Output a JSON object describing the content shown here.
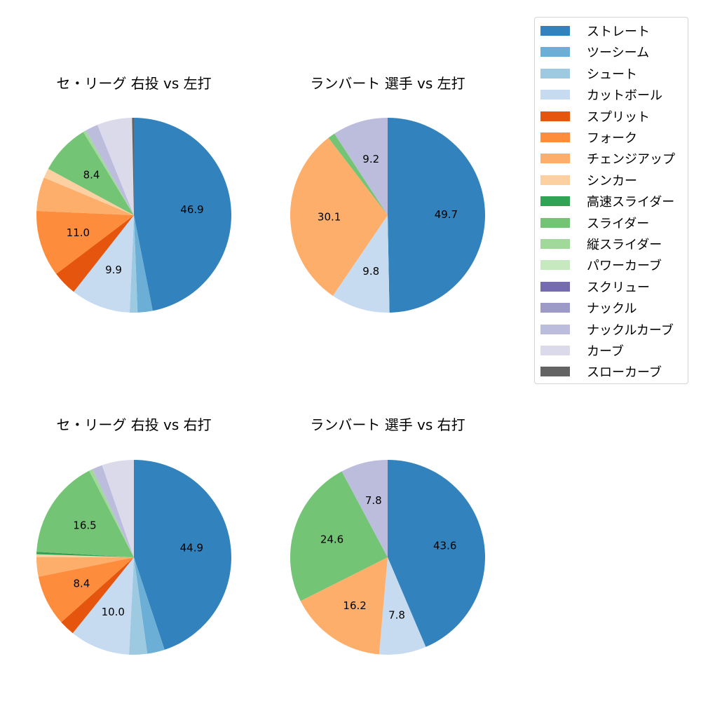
{
  "chart_data": [
    {
      "type": "pie",
      "title": "セ・リーグ 右投 vs 左打",
      "categories": [
        "ストレート",
        "ツーシーム",
        "シュート",
        "カットボール",
        "スプリット",
        "フォーク",
        "チェンジアップ",
        "シンカー",
        "スライダー",
        "縦スライダー",
        "ナックルカーブ",
        "カーブ",
        "スローカーブ"
      ],
      "values": [
        46.9,
        2.5,
        1.3,
        9.9,
        4.1,
        11.0,
        5.6,
        1.6,
        8.4,
        0.5,
        2.1,
        5.8,
        0.3
      ],
      "labels_shown": [
        "46.9",
        "",
        "",
        "9.9",
        "",
        "11.0",
        "",
        "",
        "8.4",
        "",
        "",
        "",
        ""
      ],
      "start_angle": 90,
      "direction": "clockwise"
    },
    {
      "type": "pie",
      "title": "ランバート 選手 vs 左打",
      "categories": [
        "ストレート",
        "カットボール",
        "チェンジアップ",
        "スライダー",
        "ナックルカーブ"
      ],
      "values": [
        49.7,
        9.8,
        30.1,
        1.2,
        9.2
      ],
      "labels_shown": [
        "49.7",
        "9.8",
        "30.1",
        "",
        "9.2"
      ],
      "start_angle": 90,
      "direction": "clockwise"
    },
    {
      "type": "pie",
      "title": "セ・リーグ 右投 vs 右打",
      "categories": [
        "ストレート",
        "ツーシーム",
        "シュート",
        "カットボール",
        "スプリット",
        "フォーク",
        "チェンジアップ",
        "シンカー",
        "高速スライダー",
        "スライダー",
        "縦スライダー",
        "ナックルカーブ",
        "カーブ"
      ],
      "values": [
        44.9,
        2.9,
        3.0,
        10.0,
        2.6,
        8.4,
        3.2,
        0.5,
        0.4,
        16.5,
        0.6,
        1.7,
        5.3
      ],
      "labels_shown": [
        "44.9",
        "",
        "",
        "10.0",
        "",
        "8.4",
        "",
        "",
        "",
        "16.5",
        "",
        "",
        ""
      ],
      "start_angle": 90,
      "direction": "clockwise"
    },
    {
      "type": "pie",
      "title": "ランバート 選手 vs 右打",
      "categories": [
        "ストレート",
        "カットボール",
        "チェンジアップ",
        "スライダー",
        "ナックルカーブ"
      ],
      "values": [
        43.6,
        7.8,
        16.2,
        24.6,
        7.8
      ],
      "labels_shown": [
        "43.6",
        "7.8",
        "16.2",
        "24.6",
        "7.8"
      ],
      "start_angle": 90,
      "direction": "clockwise"
    }
  ],
  "legend": {
    "items": [
      {
        "label": "ストレート",
        "color": "#3182bd"
      },
      {
        "label": "ツーシーム",
        "color": "#6baed6"
      },
      {
        "label": "シュート",
        "color": "#9ecae1"
      },
      {
        "label": "カットボール",
        "color": "#c6dbef"
      },
      {
        "label": "スプリット",
        "color": "#e6550d"
      },
      {
        "label": "フォーク",
        "color": "#fd8d3c"
      },
      {
        "label": "チェンジアップ",
        "color": "#fdae6b"
      },
      {
        "label": "シンカー",
        "color": "#fdd0a2"
      },
      {
        "label": "高速スライダー",
        "color": "#31a354"
      },
      {
        "label": "スライダー",
        "color": "#74c476"
      },
      {
        "label": "縦スライダー",
        "color": "#a1d99b"
      },
      {
        "label": "パワーカーブ",
        "color": "#c7e9c0"
      },
      {
        "label": "スクリュー",
        "color": "#756bb1"
      },
      {
        "label": "ナックル",
        "color": "#9e9ac8"
      },
      {
        "label": "ナックルカーブ",
        "color": "#bcbddc"
      },
      {
        "label": "カーブ",
        "color": "#dadaeb"
      },
      {
        "label": "スローカーブ",
        "color": "#636363"
      }
    ]
  }
}
